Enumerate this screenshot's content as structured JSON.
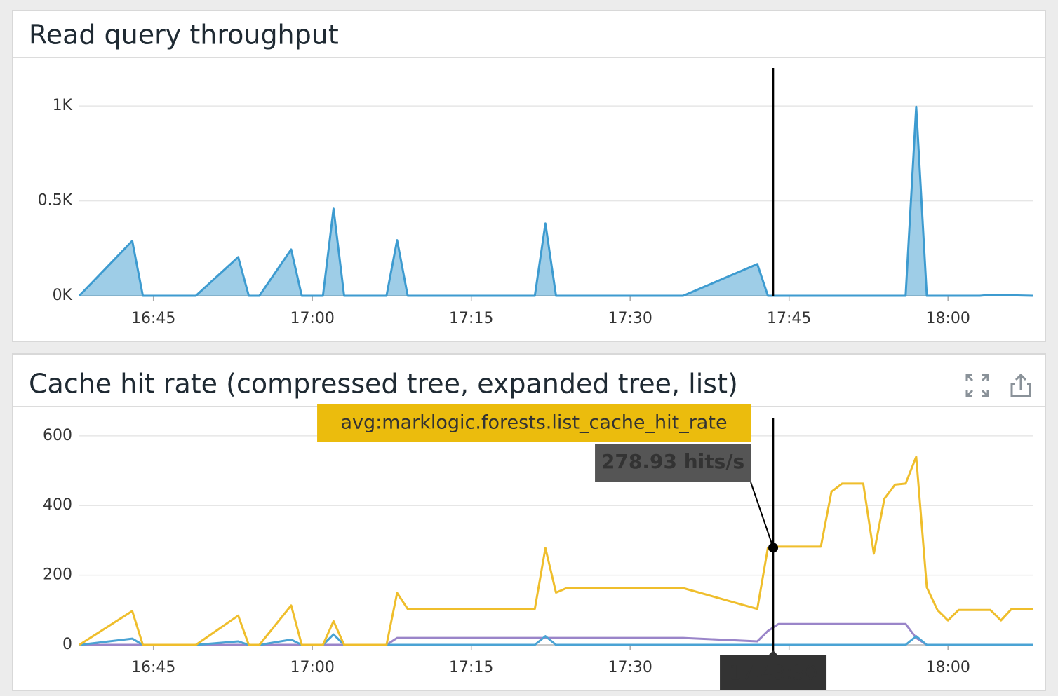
{
  "chart_data": [
    {
      "type": "area",
      "title": "Read query throughput",
      "color": "#3d9bd0",
      "x": [
        "16:38",
        "16:43",
        "16:44",
        "16:49",
        "16:53",
        "16:54",
        "16:55",
        "16:58",
        "16:59",
        "17:01",
        "17:02",
        "17:03",
        "17:07",
        "17:08",
        "17:09",
        "17:21",
        "17:22",
        "17:23",
        "17:35",
        "17:42",
        "17:43",
        "17:56",
        "17:57",
        "17:58",
        "18:03",
        "18:04",
        "18:08"
      ],
      "values": [
        0,
        289,
        0,
        0,
        204,
        0,
        0,
        244,
        0,
        0,
        459,
        0,
        0,
        293,
        0,
        0,
        381,
        0,
        0,
        167,
        0,
        0,
        996,
        0,
        0,
        5,
        0
      ],
      "xlim": [
        "16:38",
        "18:08"
      ],
      "xticks": [
        "16:45",
        "17:00",
        "17:15",
        "17:30",
        "17:45",
        "18:00"
      ],
      "ylim": [
        0,
        1200
      ],
      "yticks": [
        {
          "value": 0,
          "label": "0K"
        },
        {
          "value": 500,
          "label": "0.5K"
        },
        {
          "value": 1000,
          "label": "1K"
        }
      ],
      "grid": true
    },
    {
      "type": "line",
      "title": "Cache hit rate (compressed tree, expanded tree, list)",
      "x": [
        "16:38",
        "16:43",
        "16:44",
        "16:49",
        "16:53",
        "16:54",
        "16:55",
        "16:58",
        "16:59",
        "17:01",
        "17:02",
        "17:03",
        "17:07",
        "17:08",
        "17:09",
        "17:21",
        "17:22",
        "17:23",
        "17:24",
        "17:35",
        "17:42",
        "17:43",
        "17:44",
        "17:48",
        "17:49",
        "17:50",
        "17:52",
        "17:53",
        "17:54",
        "17:55",
        "17:56",
        "17:57",
        "17:58",
        "17:59",
        "18:00",
        "18:01",
        "18:04",
        "18:05",
        "18:06",
        "18:08"
      ],
      "series": [
        {
          "name": "avg:marklogic.forests.list_cache_hit_rate",
          "color": "#efbe2c",
          "values": [
            0,
            97,
            0,
            0,
            84,
            0,
            0,
            113,
            0,
            0,
            68,
            0,
            0,
            149,
            103,
            103,
            278,
            150,
            163,
            163,
            103,
            279,
            282,
            282,
            440,
            463,
            463,
            262,
            420,
            460,
            463,
            540,
            165,
            100,
            70,
            100,
            100,
            70,
            103,
            103
          ]
        },
        {
          "color": "#4aa3d4",
          "values": [
            0,
            18,
            0,
            0,
            10,
            0,
            0,
            15,
            0,
            0,
            30,
            0,
            0,
            0,
            0,
            0,
            25,
            0,
            0,
            0,
            0,
            0,
            0,
            0,
            0,
            0,
            0,
            0,
            0,
            0,
            0,
            25,
            0,
            0,
            0,
            0,
            0,
            0,
            0,
            0
          ]
        },
        {
          "color": "#9a85c9",
          "values": [
            0,
            0,
            0,
            0,
            0,
            0,
            0,
            0,
            0,
            0,
            0,
            0,
            0,
            20,
            20,
            20,
            20,
            20,
            20,
            20,
            10,
            40,
            60,
            60,
            60,
            60,
            60,
            60,
            60,
            60,
            60,
            20,
            0,
            0,
            0,
            0,
            0,
            0,
            0,
            0
          ]
        }
      ],
      "xlim": [
        "16:38",
        "18:08"
      ],
      "xticks": [
        "16:45",
        "17:00",
        "17:15",
        "17:30",
        "17:45",
        "18:00"
      ],
      "ylim": [
        0,
        650
      ],
      "yticks": [
        0,
        200,
        400,
        600
      ],
      "grid": true,
      "hover": {
        "x": "17:43:30",
        "value": 278.93,
        "value_label": "278.93 hits/s"
      }
    }
  ]
}
